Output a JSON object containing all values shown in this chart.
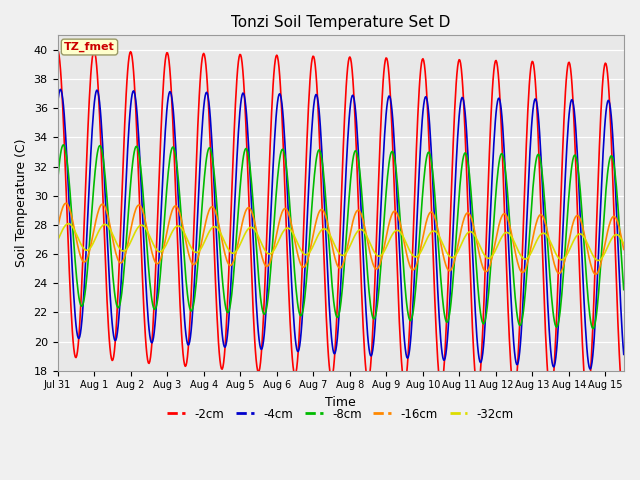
{
  "title": "Tonzi Soil Temperature Set D",
  "xlabel": "Time",
  "ylabel": "Soil Temperature (C)",
  "ylim": [
    18,
    41
  ],
  "xlim": [
    0,
    15.5
  ],
  "annotation_label": "TZ_fmet",
  "series": {
    "-2cm": {
      "color": "#FF0000",
      "linewidth": 1.2
    },
    "-4cm": {
      "color": "#0000CC",
      "linewidth": 1.2
    },
    "-8cm": {
      "color": "#00BB00",
      "linewidth": 1.2
    },
    "-16cm": {
      "color": "#FF8800",
      "linewidth": 1.2
    },
    "-32cm": {
      "color": "#DDDD00",
      "linewidth": 1.2
    }
  },
  "x_tick_labels": [
    "Jul 31",
    "Aug 1",
    "Aug 2",
    "Aug 3",
    "Aug 4",
    "Aug 5",
    "Aug 6",
    "Aug 7",
    "Aug 8",
    "Aug 9",
    "Aug 10",
    "Aug 11",
    "Aug 12",
    "Aug 13",
    "Aug 14",
    "Aug 15"
  ],
  "fig_bg": "#F0F0F0",
  "ax_bg": "#E8E8E8"
}
